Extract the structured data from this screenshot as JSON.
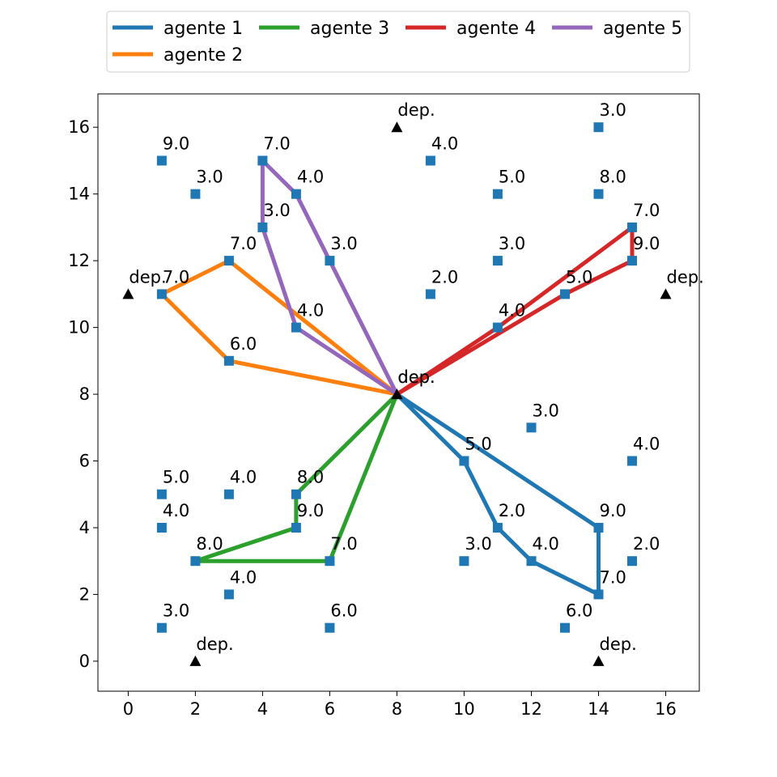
{
  "chart_data": {
    "type": "scatter",
    "title": "",
    "xlabel": "",
    "ylabel": "",
    "xlim": [
      -0.9,
      17.0
    ],
    "ylim": [
      -0.9,
      17.0
    ],
    "x_ticks": [
      0,
      2,
      4,
      6,
      8,
      10,
      12,
      14,
      16
    ],
    "y_ticks": [
      0,
      2,
      4,
      6,
      8,
      10,
      12,
      14,
      16
    ],
    "legend": {
      "placement": "top-center",
      "entries": [
        {
          "label": "agente 1",
          "color": "#1f77b4"
        },
        {
          "label": "agente 2",
          "color": "#ff7f0e"
        },
        {
          "label": "agente 3",
          "color": "#2ca02c"
        },
        {
          "label": "agente 4",
          "color": "#d62728"
        },
        {
          "label": "agente 5",
          "color": "#9467bd"
        }
      ]
    },
    "depots": [
      {
        "x": 8,
        "y": 16,
        "label": "dep."
      },
      {
        "x": 0,
        "y": 11,
        "label": "dep."
      },
      {
        "x": 16,
        "y": 11,
        "label": "dep."
      },
      {
        "x": 8,
        "y": 8,
        "label": "dep."
      },
      {
        "x": 8,
        "y": 8,
        "label": "dep."
      },
      {
        "x": 2,
        "y": 0,
        "label": "dep."
      },
      {
        "x": 14,
        "y": 0,
        "label": "dep."
      }
    ],
    "depot_color": "#000000",
    "customer_color": "#1f77b4",
    "customers": [
      {
        "x": 14,
        "y": 16,
        "label": "3.0"
      },
      {
        "x": 1,
        "y": 15,
        "label": "9.0"
      },
      {
        "x": 4,
        "y": 15,
        "label": "7.0"
      },
      {
        "x": 9,
        "y": 15,
        "label": "4.0"
      },
      {
        "x": 2,
        "y": 14,
        "label": "3.0"
      },
      {
        "x": 5,
        "y": 14,
        "label": "4.0"
      },
      {
        "x": 11,
        "y": 14,
        "label": "5.0"
      },
      {
        "x": 14,
        "y": 14,
        "label": "8.0"
      },
      {
        "x": 4,
        "y": 13,
        "label": "3.0"
      },
      {
        "x": 15,
        "y": 13,
        "label": "7.0"
      },
      {
        "x": 3,
        "y": 12,
        "label": "7.0"
      },
      {
        "x": 6,
        "y": 12,
        "label": "3.0"
      },
      {
        "x": 11,
        "y": 12,
        "label": "3.0"
      },
      {
        "x": 15,
        "y": 12,
        "label": "9.0"
      },
      {
        "x": 1,
        "y": 11,
        "label": "7.0"
      },
      {
        "x": 9,
        "y": 11,
        "label": "2.0"
      },
      {
        "x": 13,
        "y": 11,
        "label": "5.0"
      },
      {
        "x": 5,
        "y": 10,
        "label": "4.0"
      },
      {
        "x": 11,
        "y": 10,
        "label": "4.0"
      },
      {
        "x": 3,
        "y": 9,
        "label": "6.0"
      },
      {
        "x": 12,
        "y": 7,
        "label": "3.0"
      },
      {
        "x": 10,
        "y": 6,
        "label": "5.0"
      },
      {
        "x": 15,
        "y": 6,
        "label": "4.0"
      },
      {
        "x": 1,
        "y": 5,
        "label": "5.0"
      },
      {
        "x": 3,
        "y": 5,
        "label": "4.0"
      },
      {
        "x": 5,
        "y": 5,
        "label": "8.0"
      },
      {
        "x": 1,
        "y": 4,
        "label": "4.0"
      },
      {
        "x": 5,
        "y": 4,
        "label": "9.0"
      },
      {
        "x": 11,
        "y": 4,
        "label": "2.0"
      },
      {
        "x": 14,
        "y": 4,
        "label": "9.0"
      },
      {
        "x": 2,
        "y": 3,
        "label": "8.0"
      },
      {
        "x": 6,
        "y": 3,
        "label": "7.0"
      },
      {
        "x": 10,
        "y": 3,
        "label": "3.0"
      },
      {
        "x": 12,
        "y": 3,
        "label": "4.0"
      },
      {
        "x": 15,
        "y": 3,
        "label": "2.0"
      },
      {
        "x": 3,
        "y": 2,
        "label": "4.0"
      },
      {
        "x": 14,
        "y": 2,
        "label": "7.0"
      },
      {
        "x": 1,
        "y": 1,
        "label": "3.0"
      },
      {
        "x": 6,
        "y": 1,
        "label": "6.0"
      },
      {
        "x": 13,
        "y": 1,
        "label": "6.0"
      }
    ],
    "series": [
      {
        "name": "agente 1",
        "color": "#1f77b4",
        "points": [
          [
            8,
            8
          ],
          [
            10,
            6
          ],
          [
            11,
            4
          ],
          [
            12,
            3
          ],
          [
            14,
            2
          ],
          [
            14,
            4
          ],
          [
            8,
            8
          ]
        ]
      },
      {
        "name": "agente 2",
        "color": "#ff7f0e",
        "points": [
          [
            8,
            8
          ],
          [
            3,
            9
          ],
          [
            1,
            11
          ],
          [
            3,
            12
          ],
          [
            8,
            8
          ]
        ]
      },
      {
        "name": "agente 3",
        "color": "#2ca02c",
        "points": [
          [
            8,
            8
          ],
          [
            5,
            5
          ],
          [
            5,
            4
          ],
          [
            2,
            3
          ],
          [
            6,
            3
          ],
          [
            8,
            8
          ]
        ]
      },
      {
        "name": "agente 4",
        "color": "#d62728",
        "points": [
          [
            8,
            8
          ],
          [
            11,
            10
          ],
          [
            15,
            13
          ],
          [
            15,
            12
          ],
          [
            13,
            11
          ],
          [
            8,
            8
          ]
        ]
      },
      {
        "name": "agente 5",
        "color": "#9467bd",
        "points": [
          [
            8,
            8
          ],
          [
            5,
            10
          ],
          [
            4,
            13
          ],
          [
            4,
            15
          ],
          [
            5,
            14
          ],
          [
            6,
            12
          ],
          [
            8,
            8
          ]
        ]
      }
    ]
  }
}
